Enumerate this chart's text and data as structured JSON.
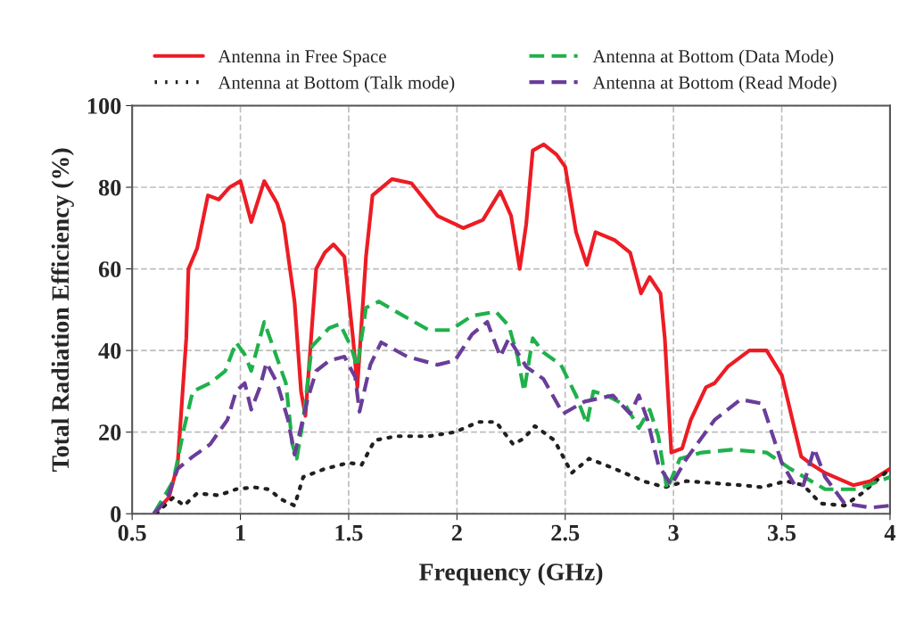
{
  "chart_data": {
    "type": "line",
    "xlabel": "Frequency (GHz)",
    "ylabel": "Total Radiation Efficiency (%)",
    "xlim": [
      0.5,
      4
    ],
    "xticks": [
      0.5,
      1,
      1.5,
      2,
      2.5,
      3,
      3.5,
      4
    ],
    "ylim": [
      0,
      100
    ],
    "yticks": [
      0,
      20,
      40,
      60,
      80,
      100
    ],
    "grid": true,
    "legend": "top",
    "marker": "none",
    "series": [
      {
        "name": "Antenna in Free Space",
        "color": "#ed1c24",
        "line_style": "solid",
        "x": [
          0.6,
          0.67,
          0.71,
          0.75,
          0.76,
          0.8,
          0.85,
          0.9,
          0.95,
          1.0,
          1.05,
          1.11,
          1.17,
          1.2,
          1.25,
          1.28,
          1.3,
          1.35,
          1.39,
          1.43,
          1.48,
          1.52,
          1.54,
          1.58,
          1.61,
          1.7,
          1.79,
          1.91,
          2.03,
          2.12,
          2.2,
          2.25,
          2.29,
          2.32,
          2.35,
          2.4,
          2.46,
          2.5,
          2.55,
          2.6,
          2.64,
          2.73,
          2.8,
          2.85,
          2.89,
          2.94,
          2.96,
          2.99,
          3.04,
          3.08,
          3.15,
          3.19,
          3.25,
          3.35,
          3.43,
          3.5,
          3.59,
          3.64,
          3.7,
          3.83,
          3.91,
          4.0
        ],
        "values": [
          0,
          4,
          12,
          43,
          60,
          65,
          78,
          77,
          80,
          81.5,
          71.5,
          81.5,
          76,
          71,
          52,
          30,
          24,
          60,
          64,
          66,
          63,
          43,
          31,
          63,
          78,
          82,
          81,
          73,
          70,
          72,
          79,
          73,
          60,
          71,
          89,
          90.5,
          88,
          85,
          69,
          61,
          69,
          67,
          64,
          54,
          58,
          54,
          43,
          15,
          16,
          23,
          31,
          32,
          36,
          40,
          40,
          34,
          14,
          12,
          10,
          7,
          8,
          11
        ]
      },
      {
        "name": "Antenna at Bottom (Talk mode)",
        "color": "#231f20",
        "line_style": "dotted",
        "x": [
          0.61,
          0.69,
          0.74,
          0.8,
          0.9,
          0.98,
          1.06,
          1.13,
          1.19,
          1.25,
          1.29,
          1.39,
          1.5,
          1.56,
          1.62,
          1.72,
          1.87,
          1.99,
          2.1,
          2.18,
          2.26,
          2.31,
          2.36,
          2.45,
          2.53,
          2.61,
          2.73,
          2.86,
          2.96,
          3.06,
          3.31,
          3.41,
          3.52,
          3.6,
          3.68,
          3.79,
          3.87,
          4.0
        ],
        "values": [
          0,
          4,
          2,
          5,
          4.5,
          6,
          6.5,
          6,
          3.5,
          2,
          9,
          11,
          12.5,
          12,
          18,
          19,
          19,
          20,
          22.5,
          22.5,
          17,
          18.5,
          21.5,
          18,
          10,
          13.5,
          11,
          8,
          6.5,
          8,
          7,
          6.5,
          8,
          7,
          2.5,
          2,
          5,
          11
        ]
      },
      {
        "name": "Antenna at Bottom (Data Mode)",
        "color": "#1fb14b",
        "line_style": "dashed",
        "x": [
          0.6,
          0.69,
          0.74,
          0.78,
          0.86,
          0.93,
          0.98,
          1.02,
          1.05,
          1.08,
          1.11,
          1.17,
          1.21,
          1.24,
          1.26,
          1.29,
          1.33,
          1.41,
          1.46,
          1.51,
          1.54,
          1.58,
          1.64,
          1.72,
          1.87,
          1.97,
          2.07,
          2.18,
          2.24,
          2.28,
          2.31,
          2.35,
          2.4,
          2.48,
          2.55,
          2.6,
          2.63,
          2.69,
          2.78,
          2.84,
          2.89,
          2.93,
          2.97,
          3.03,
          3.13,
          3.27,
          3.43,
          3.54,
          3.7,
          3.85,
          4.0
        ],
        "values": [
          0,
          8,
          21,
          30,
          32,
          35,
          42,
          39,
          35,
          41,
          47,
          38,
          32,
          17,
          13.5,
          23,
          41,
          45.5,
          46.5,
          41,
          36,
          50.5,
          52,
          49.5,
          45,
          45,
          48.5,
          49.5,
          46,
          38.5,
          30,
          43,
          39.5,
          36.5,
          29,
          22,
          30,
          29,
          26.5,
          21,
          25.5,
          19,
          6,
          13.5,
          15,
          15.7,
          15,
          11,
          6,
          6,
          9
        ]
      },
      {
        "name": "Antenna at Bottom (Read Mode)",
        "color": "#6a3d9a",
        "line_style": "dashed",
        "x": [
          0.6,
          0.66,
          0.71,
          0.78,
          0.86,
          0.94,
          0.98,
          1.02,
          1.05,
          1.09,
          1.12,
          1.17,
          1.22,
          1.25,
          1.31,
          1.35,
          1.41,
          1.48,
          1.53,
          1.55,
          1.6,
          1.65,
          1.77,
          1.91,
          1.99,
          2.07,
          2.14,
          2.2,
          2.24,
          2.32,
          2.4,
          2.49,
          2.59,
          2.72,
          2.8,
          2.84,
          2.88,
          2.93,
          2.99,
          3.06,
          3.19,
          3.31,
          3.41,
          3.5,
          3.56,
          3.6,
          3.65,
          3.7,
          3.79,
          3.91,
          4.0
        ],
        "values": [
          0,
          3.5,
          11,
          14,
          17,
          23,
          30,
          32,
          25.5,
          31,
          37,
          32,
          23,
          14.5,
          28,
          35,
          37.5,
          38.5,
          33.5,
          25,
          36.5,
          42,
          38.5,
          36.5,
          37.5,
          44,
          47,
          38.5,
          43,
          36,
          33,
          24.5,
          27.5,
          29,
          24.5,
          29,
          23,
          12,
          7,
          13.5,
          23,
          28,
          27,
          12.5,
          7,
          7,
          16,
          9,
          2.5,
          1.5,
          2
        ]
      }
    ]
  }
}
